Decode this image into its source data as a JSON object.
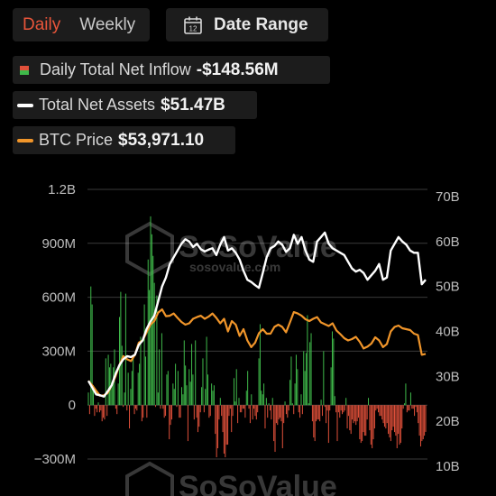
{
  "tabs": {
    "daily": "Daily",
    "weekly": "Weekly"
  },
  "date_range": {
    "label": "Date Range",
    "icon": "calendar-icon",
    "icon_text": "12"
  },
  "legend": {
    "inflow": {
      "label": "Daily Total Net Inflow",
      "value": "-$148.56M"
    },
    "assets": {
      "label": "Total Net Assets",
      "value": "$51.47B"
    },
    "btc": {
      "label": "BTC Price",
      "value": "$53,971.10"
    }
  },
  "watermark": {
    "brand": "SoSoValue",
    "url": "sosovalue.com"
  },
  "colors": {
    "positive": "#3fb94a",
    "negative": "#e0503a",
    "assets_line": "#ffffff",
    "btc_line": "#f0952a",
    "grid": "#3a3a3a",
    "active_tab": "#e8553a"
  },
  "chart_data": {
    "type": "bar",
    "title": "",
    "xlabel": "",
    "grid": true,
    "left_axis": {
      "min": -300,
      "max": 1200,
      "ticks": [
        -300,
        0,
        300,
        600,
        900,
        1200
      ],
      "tick_labels": [
        "−300M",
        "0",
        "300M",
        "600M",
        "900M",
        "1.2B"
      ],
      "unit": "M USD"
    },
    "right_axis": {
      "min": 10,
      "max": 70,
      "ticks": [
        10,
        20,
        30,
        40,
        50,
        60,
        70
      ],
      "tick_labels": [
        "10B",
        "20B",
        "30B",
        "40B",
        "50B",
        "60B",
        "70B"
      ],
      "unit": "B USD"
    },
    "series": [
      {
        "name": "Daily Total Net Inflow",
        "axis": "left",
        "kind": "bar",
        "values": [
          70,
          -50,
          660,
          560,
          110,
          -60,
          -20,
          -40,
          15,
          -40,
          -30,
          -90,
          -70,
          -80,
          260,
          -60,
          280,
          210,
          230,
          120,
          210,
          310,
          -20,
          -50,
          120,
          490,
          630,
          330,
          -10,
          70,
          620,
          -30,
          180,
          -130,
          90,
          190,
          280,
          -50,
          -20,
          -30,
          180,
          230,
          380,
          -90,
          -70,
          560,
          270,
          -70,
          810,
          640,
          1050,
          950,
          830,
          680,
          -10,
          610,
          70,
          310,
          -20,
          400,
          -20,
          -70,
          -60,
          170,
          190,
          -190,
          -110,
          -80,
          120,
          90,
          230,
          -10,
          190,
          -70,
          -70,
          100,
          60,
          360,
          220,
          110,
          -200,
          200,
          130,
          340,
          170,
          -80,
          360,
          -70,
          -150,
          -120,
          -40,
          100,
          260,
          -40,
          90,
          380,
          170,
          -70,
          -60,
          120,
          80,
          110,
          -160,
          -290,
          -240,
          -80,
          40,
          -60,
          -150,
          -270,
          -290,
          -220,
          -220,
          -60,
          -20,
          -150,
          -60,
          150,
          20,
          200,
          -100,
          40,
          -40,
          -40,
          -20,
          -20,
          -70,
          80,
          190,
          -20,
          -100,
          60,
          -80,
          -20,
          -60,
          -80,
          -40,
          260,
          450,
          80,
          60,
          120,
          -130,
          40,
          -70,
          10,
          -30,
          -80,
          40,
          -200,
          -260,
          -100,
          -110,
          -80,
          -70,
          -90,
          -240,
          -100,
          20,
          -50,
          -70,
          -30,
          140,
          270,
          10,
          -50,
          120,
          280,
          200,
          -40,
          -70,
          60,
          -50,
          300,
          190,
          290,
          500,
          10,
          350,
          400,
          -90,
          -180,
          -200,
          -90,
          -80,
          -80,
          -90,
          30,
          -60,
          300,
          -10,
          -100,
          -30,
          -210,
          -30,
          210,
          410,
          370,
          50,
          -40,
          -200,
          -40,
          -70,
          -30,
          -50,
          -40,
          -30,
          40,
          -130,
          -60,
          -140,
          -160,
          -80,
          -100,
          -90,
          -110,
          -90,
          -70,
          -190,
          -210,
          -200,
          -150,
          -170,
          -170,
          -80,
          40,
          -140,
          -220,
          -240,
          -190,
          -130,
          -30,
          -20,
          -40,
          -60,
          -60,
          -80,
          -100,
          -120,
          -130,
          -100,
          -160,
          -180,
          -200,
          -140,
          -120,
          -150,
          -170,
          -240,
          -160,
          -220,
          -210,
          -130,
          -20,
          10,
          120,
          -40,
          -30,
          -30,
          70,
          -20,
          -20,
          -60,
          -10,
          -40,
          -100,
          -170,
          -230,
          -200,
          -190,
          -170,
          -149
        ]
      },
      {
        "name": "Total Net Assets",
        "axis": "right",
        "kind": "line",
        "values": [
          29.0,
          27.5,
          26.0,
          25.8,
          25.5,
          26.7,
          28.0,
          30.5,
          32.5,
          33.8,
          34.5,
          34.3,
          34.8,
          37.0,
          38.0,
          40.5,
          42.2,
          43.5,
          46.7,
          50.0,
          52.0,
          55.0,
          56.5,
          58.0,
          59.5,
          60.5,
          60.0,
          58.8,
          59.5,
          58.3,
          57.8,
          58.2,
          58.5,
          57.0,
          59.3,
          61.0,
          58.0,
          58.5,
          57.5,
          56.0,
          53.5,
          51.5,
          51.0,
          50.3,
          49.7,
          53.0,
          56.5,
          58.5,
          59.0,
          60.0,
          59.3,
          57.7,
          58.5,
          61.5,
          59.5,
          61.0,
          58.0,
          56.0,
          55.5,
          60.0,
          61.0,
          62.0,
          59.5,
          58.5,
          58.0,
          57.5,
          57.0,
          55.5,
          54.0,
          53.3,
          53.7,
          53.0,
          51.5,
          52.5,
          53.5,
          55.0,
          51.5,
          52.0,
          58.0,
          59.5,
          61.0,
          60.0,
          59.3,
          58.0,
          57.5,
          57.5,
          50.5,
          51.5
        ]
      },
      {
        "name": "BTC Price",
        "axis": "right",
        "kind": "line",
        "values": [
          29.0,
          28.0,
          26.8,
          25.7,
          25.8,
          26.3,
          28.0,
          30.0,
          32.5,
          34.5,
          33.8,
          33.4,
          34.8,
          37.5,
          38.0,
          39.8,
          41.5,
          42.3,
          44.2,
          44.9,
          43.4,
          43.5,
          44.0,
          43.0,
          42.1,
          41.5,
          41.8,
          42.8,
          43.2,
          43.5,
          42.8,
          43.3,
          44.0,
          43.0,
          41.8,
          42.8,
          40.0,
          42.3,
          41.5,
          39.0,
          40.5,
          38.0,
          36.5,
          37.5,
          39.6,
          40.5,
          39.5,
          39.5,
          41.0,
          41.5,
          41.0,
          39.8,
          42.0,
          44.3,
          44.0,
          43.5,
          42.7,
          42.3,
          42.8,
          43.2,
          42.0,
          41.6,
          41.2,
          41.8,
          40.2,
          39.4,
          38.5,
          38.0,
          38.3,
          38.8,
          37.7,
          36.2,
          36.6,
          37.3,
          38.7,
          38.0,
          36.5,
          37.2,
          40.0,
          41.0,
          41.3,
          40.7,
          40.5,
          40.3,
          39.5,
          39.2,
          34.8,
          35.0
        ]
      }
    ]
  }
}
